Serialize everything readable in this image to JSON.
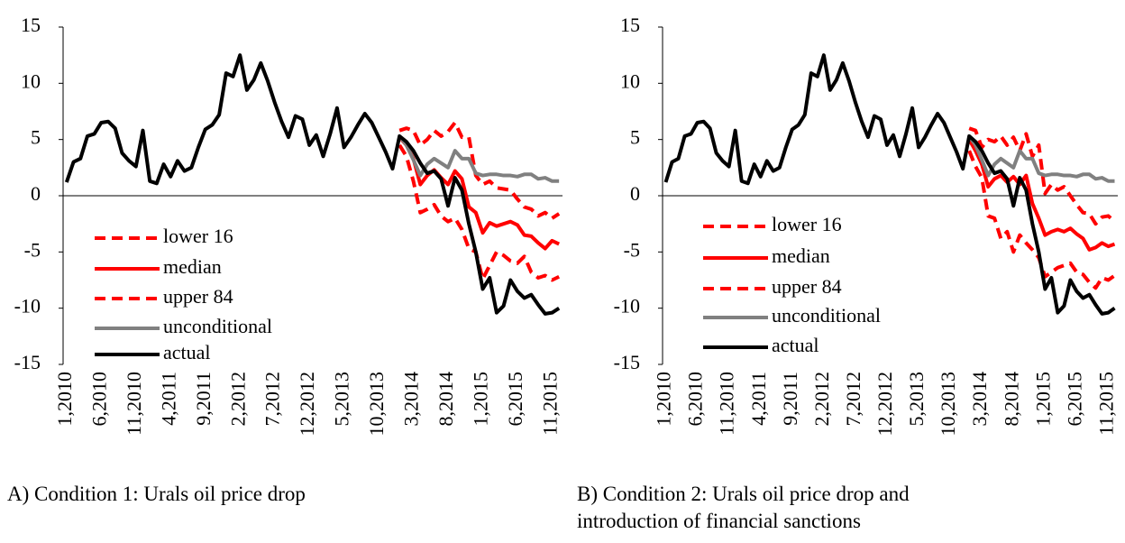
{
  "chart_data": [
    {
      "type": "line",
      "caption": "A) Condition 1: Urals oil price drop",
      "categories": [
        "1,2010",
        null,
        null,
        null,
        null,
        "6,2010",
        null,
        null,
        null,
        null,
        "11,2010",
        null,
        null,
        null,
        null,
        "4,2011",
        null,
        null,
        null,
        null,
        "9,2011",
        null,
        null,
        null,
        null,
        "2,2012",
        null,
        null,
        null,
        null,
        "7,2012",
        null,
        null,
        null,
        null,
        "12,2012",
        null,
        null,
        null,
        null,
        "5,2013",
        null,
        null,
        null,
        null,
        "10,2013",
        null,
        null,
        null,
        null,
        "3,2014",
        null,
        null,
        null,
        null,
        "8,2014",
        null,
        null,
        null,
        null,
        "1,2015",
        null,
        null,
        null,
        null,
        "6,2015",
        null,
        null,
        null,
        null,
        "11,2015",
        null
      ],
      "ylim": [
        -15,
        15
      ],
      "yticks": [
        -15,
        -10,
        -5,
        0,
        5,
        10,
        15
      ],
      "series": [
        {
          "name": "lower 16",
          "color": "#ff0000",
          "style": "dashed",
          "values": [
            null,
            null,
            null,
            null,
            null,
            null,
            null,
            null,
            null,
            null,
            null,
            null,
            null,
            null,
            null,
            null,
            null,
            null,
            null,
            null,
            null,
            null,
            null,
            null,
            null,
            null,
            null,
            null,
            null,
            null,
            null,
            null,
            null,
            null,
            null,
            null,
            null,
            null,
            null,
            null,
            null,
            null,
            null,
            null,
            null,
            null,
            null,
            null,
            4.5,
            3.5,
            1.3,
            -1.5,
            -1.2,
            -0.8,
            -1.8,
            -2.3,
            -2.0,
            -3.0,
            -4.7,
            -5.0,
            -7.4,
            -6.2,
            -5.0,
            -5.3,
            -5.8,
            -6.0,
            -5.4,
            -6.8,
            -7.3,
            -7.1,
            -7.5,
            -7.2
          ]
        },
        {
          "name": "median",
          "color": "#ff0000",
          "style": "solid",
          "values": [
            null,
            null,
            null,
            null,
            null,
            null,
            null,
            null,
            null,
            null,
            null,
            null,
            null,
            null,
            null,
            null,
            null,
            null,
            null,
            null,
            null,
            null,
            null,
            null,
            null,
            null,
            null,
            null,
            null,
            null,
            null,
            null,
            null,
            null,
            null,
            null,
            null,
            null,
            null,
            null,
            null,
            null,
            null,
            null,
            null,
            null,
            null,
            null,
            5.2,
            4.5,
            3.3,
            1.0,
            1.8,
            2.3,
            1.6,
            1.0,
            2.2,
            1.5,
            -1.0,
            -1.5,
            -3.3,
            -2.4,
            -2.7,
            -2.5,
            -2.3,
            -2.6,
            -3.5,
            -3.6,
            -4.2,
            -4.7,
            -4.0,
            -4.3
          ]
        },
        {
          "name": "upper 84",
          "color": "#ff0000",
          "style": "dashed",
          "values": [
            null,
            null,
            null,
            null,
            null,
            null,
            null,
            null,
            null,
            null,
            null,
            null,
            null,
            null,
            null,
            null,
            null,
            null,
            null,
            null,
            null,
            null,
            null,
            null,
            null,
            null,
            null,
            null,
            null,
            null,
            null,
            null,
            null,
            null,
            null,
            null,
            null,
            null,
            null,
            null,
            null,
            null,
            null,
            null,
            null,
            null,
            null,
            null,
            5.8,
            6.0,
            5.8,
            4.5,
            5.0,
            5.8,
            5.3,
            5.7,
            6.5,
            5.2,
            5.2,
            1.8,
            1.0,
            1.3,
            0.7,
            0.6,
            0.5,
            -0.3,
            -1.0,
            -1.2,
            -1.8,
            -1.5,
            -2.0,
            -1.6
          ]
        },
        {
          "name": "unconditional",
          "color": "#808080",
          "style": "solid",
          "values": [
            null,
            null,
            null,
            null,
            null,
            null,
            null,
            null,
            null,
            null,
            null,
            null,
            null,
            null,
            null,
            null,
            null,
            null,
            null,
            null,
            null,
            null,
            null,
            null,
            null,
            null,
            null,
            null,
            null,
            null,
            null,
            null,
            null,
            null,
            null,
            null,
            null,
            null,
            null,
            null,
            null,
            null,
            null,
            null,
            null,
            null,
            null,
            null,
            5.3,
            4.5,
            3.2,
            1.8,
            2.8,
            3.3,
            2.9,
            2.5,
            4.0,
            3.3,
            3.3,
            2.0,
            1.8,
            1.9,
            1.9,
            1.8,
            1.8,
            1.7,
            1.9,
            1.9,
            1.5,
            1.6,
            1.3,
            1.3
          ]
        },
        {
          "name": "actual",
          "color": "#000000",
          "style": "solid",
          "values": [
            1.2,
            3.0,
            3.3,
            5.3,
            5.5,
            6.5,
            6.6,
            6.0,
            3.8,
            3.1,
            2.6,
            5.8,
            1.3,
            1.1,
            2.8,
            1.7,
            3.1,
            2.2,
            2.5,
            4.3,
            5.9,
            6.3,
            7.2,
            10.9,
            10.6,
            12.5,
            9.4,
            10.3,
            11.8,
            10.2,
            8.3,
            6.6,
            5.2,
            7.1,
            6.8,
            4.5,
            5.4,
            3.5,
            5.5,
            7.8,
            4.3,
            5.2,
            6.3,
            7.3,
            6.5,
            5.2,
            3.9,
            2.4,
            5.3,
            4.8,
            4.0,
            2.9,
            2.0,
            2.2,
            1.5,
            -0.9,
            1.6,
            0.5,
            -2.5,
            -5.0,
            -8.3,
            -7.3,
            -10.4,
            -9.8,
            -7.5,
            -8.5,
            -9.1,
            -8.8,
            -9.7,
            -10.5,
            -10.4,
            -10.0
          ]
        }
      ]
    },
    {
      "type": "line",
      "caption": "B) Condition 2: Urals oil price drop and introduction of financial sanctions",
      "categories": [
        "1,2010",
        null,
        null,
        null,
        null,
        "6,2010",
        null,
        null,
        null,
        null,
        "11,2010",
        null,
        null,
        null,
        null,
        "4,2011",
        null,
        null,
        null,
        null,
        "9,2011",
        null,
        null,
        null,
        null,
        "2,2012",
        null,
        null,
        null,
        null,
        "7,2012",
        null,
        null,
        null,
        null,
        "12,2012",
        null,
        null,
        null,
        null,
        "5,2013",
        null,
        null,
        null,
        null,
        "10,2013",
        null,
        null,
        null,
        null,
        "3,2014",
        null,
        null,
        null,
        null,
        "8,2014",
        null,
        null,
        null,
        null,
        "1,2015",
        null,
        null,
        null,
        null,
        "6,2015",
        null,
        null,
        null,
        null,
        "11,2015",
        null
      ],
      "ylim": [
        -15,
        15
      ],
      "yticks": [
        -15,
        -10,
        -5,
        0,
        5,
        10,
        15
      ],
      "series": [
        {
          "name": "lower 16",
          "color": "#ff0000",
          "style": "dashed",
          "values": [
            null,
            null,
            null,
            null,
            null,
            null,
            null,
            null,
            null,
            null,
            null,
            null,
            null,
            null,
            null,
            null,
            null,
            null,
            null,
            null,
            null,
            null,
            null,
            null,
            null,
            null,
            null,
            null,
            null,
            null,
            null,
            null,
            null,
            null,
            null,
            null,
            null,
            null,
            null,
            null,
            null,
            null,
            null,
            null,
            null,
            null,
            null,
            null,
            4.0,
            2.6,
            1.6,
            -1.8,
            -2.0,
            -3.8,
            -3.2,
            -5.0,
            -3.5,
            -4.2,
            -4.8,
            -5.5,
            -7.2,
            -6.8,
            -6.4,
            -6.2,
            -6.0,
            -6.8,
            -7.0,
            -7.7,
            -8.2,
            -7.3,
            -7.5,
            -7.1
          ]
        },
        {
          "name": "median",
          "color": "#ff0000",
          "style": "solid",
          "values": [
            null,
            null,
            null,
            null,
            null,
            null,
            null,
            null,
            null,
            null,
            null,
            null,
            null,
            null,
            null,
            null,
            null,
            null,
            null,
            null,
            null,
            null,
            null,
            null,
            null,
            null,
            null,
            null,
            null,
            null,
            null,
            null,
            null,
            null,
            null,
            null,
            null,
            null,
            null,
            null,
            null,
            null,
            null,
            null,
            null,
            null,
            null,
            null,
            5.0,
            4.0,
            2.8,
            0.8,
            1.5,
            1.8,
            1.2,
            1.7,
            1.0,
            1.8,
            -0.7,
            -2.0,
            -3.5,
            -3.2,
            -3.0,
            -3.2,
            -2.9,
            -3.4,
            -3.8,
            -4.8,
            -4.6,
            -4.2,
            -4.5,
            -4.3
          ]
        },
        {
          "name": "upper 84",
          "color": "#ff0000",
          "style": "dashed",
          "values": [
            null,
            null,
            null,
            null,
            null,
            null,
            null,
            null,
            null,
            null,
            null,
            null,
            null,
            null,
            null,
            null,
            null,
            null,
            null,
            null,
            null,
            null,
            null,
            null,
            null,
            null,
            null,
            null,
            null,
            null,
            null,
            null,
            null,
            null,
            null,
            null,
            null,
            null,
            null,
            null,
            null,
            null,
            null,
            null,
            null,
            null,
            null,
            null,
            6.0,
            5.8,
            4.3,
            5.0,
            4.8,
            5.3,
            4.5,
            5.2,
            4.0,
            5.5,
            3.5,
            4.5,
            0.2,
            1.0,
            0.5,
            0.8,
            0.0,
            -0.8,
            -1.5,
            -1.6,
            -2.5,
            -1.9,
            -1.8,
            -2.3
          ]
        },
        {
          "name": "unconditional",
          "color": "#808080",
          "style": "solid",
          "values": [
            null,
            null,
            null,
            null,
            null,
            null,
            null,
            null,
            null,
            null,
            null,
            null,
            null,
            null,
            null,
            null,
            null,
            null,
            null,
            null,
            null,
            null,
            null,
            null,
            null,
            null,
            null,
            null,
            null,
            null,
            null,
            null,
            null,
            null,
            null,
            null,
            null,
            null,
            null,
            null,
            null,
            null,
            null,
            null,
            null,
            null,
            null,
            null,
            5.3,
            4.5,
            3.2,
            1.8,
            2.8,
            3.3,
            2.9,
            2.5,
            4.0,
            3.3,
            3.3,
            2.0,
            1.8,
            1.9,
            1.9,
            1.8,
            1.8,
            1.7,
            1.9,
            1.9,
            1.5,
            1.6,
            1.3,
            1.3
          ]
        },
        {
          "name": "actual",
          "color": "#000000",
          "style": "solid",
          "values": [
            1.2,
            3.0,
            3.3,
            5.3,
            5.5,
            6.5,
            6.6,
            6.0,
            3.8,
            3.1,
            2.6,
            5.8,
            1.3,
            1.1,
            2.8,
            1.7,
            3.1,
            2.2,
            2.5,
            4.3,
            5.9,
            6.3,
            7.2,
            10.9,
            10.6,
            12.5,
            9.4,
            10.3,
            11.8,
            10.2,
            8.3,
            6.6,
            5.2,
            7.1,
            6.8,
            4.5,
            5.4,
            3.5,
            5.5,
            7.8,
            4.3,
            5.2,
            6.3,
            7.3,
            6.5,
            5.2,
            3.9,
            2.4,
            5.3,
            4.8,
            4.0,
            2.9,
            2.0,
            2.2,
            1.5,
            -0.9,
            1.6,
            0.5,
            -2.5,
            -5.0,
            -8.3,
            -7.3,
            -10.4,
            -9.8,
            -7.5,
            -8.5,
            -9.1,
            -8.8,
            -9.7,
            -10.5,
            -10.4,
            -10.0
          ]
        }
      ]
    }
  ]
}
